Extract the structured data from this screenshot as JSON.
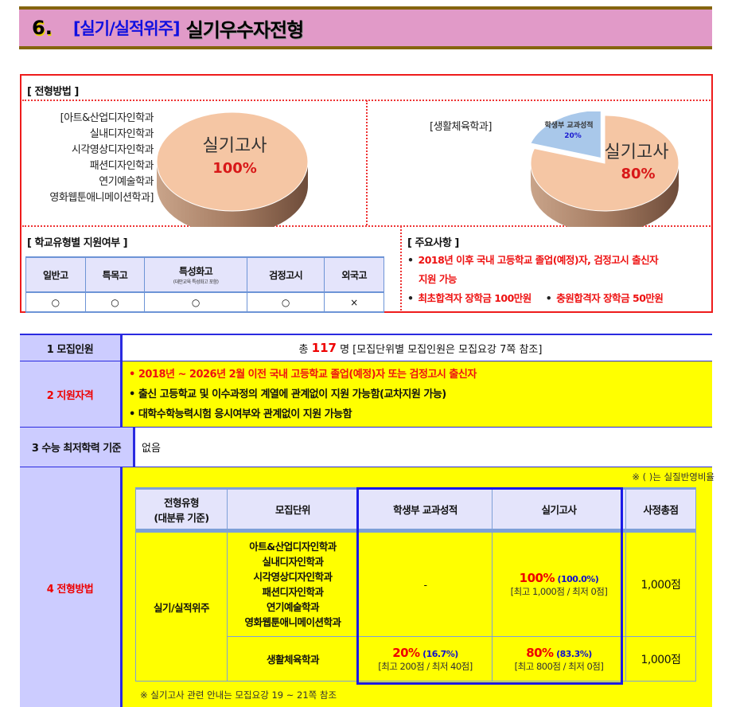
{
  "header": {
    "number": "6.",
    "category": "[실기/실적위주]",
    "title": "실기우수자전형"
  },
  "method_box": {
    "label": "[ 전형방법 ]",
    "left": {
      "departments": [
        "[아트&산업디자인학과",
        "실내디자인학과",
        "시각영상디자인학과",
        "패션디자인학과",
        "연기예술학과",
        "영화웹툰애니메이션학과]"
      ],
      "pie": {
        "slices": [
          {
            "label": "실기고사",
            "value_label": "100%",
            "value": 100,
            "color": "#f5c6a4"
          }
        ]
      }
    },
    "right": {
      "departments": [
        "[생활체육학과]"
      ],
      "pie": {
        "slices": [
          {
            "label": "실기고사",
            "value_label": "80%",
            "value": 80,
            "color": "#f5c6a4"
          },
          {
            "label": "학생부 교과성적",
            "value_label": "20%",
            "value": 20,
            "color": "#a9c8ea"
          }
        ]
      }
    }
  },
  "school_type": {
    "label": "[ 학교유형별 지원여부 ]",
    "headers": [
      {
        "label": "일반고",
        "note": ""
      },
      {
        "label": "특목고",
        "note": ""
      },
      {
        "label": "특성화고",
        "note": "(대안교육 특성화고 포함)"
      },
      {
        "label": "검정고시",
        "note": ""
      },
      {
        "label": "외국고",
        "note": ""
      }
    ],
    "values": [
      "○",
      "○",
      "○",
      "○",
      "×"
    ]
  },
  "notices": {
    "label": "[ 주요사항 ]",
    "bullet": "•",
    "items": [
      "2018년 이후 국내 고등학교 졸업(예정)자, 검정고시 출신자",
      "지원 가능",
      "최초합격자 장학금 100만원",
      "충원합격자 장학금 50만원"
    ]
  },
  "main": {
    "recruit": {
      "label": "1 모집인원",
      "prefix": "총",
      "count": "117",
      "suffix": "명 [모집단위별 모집인원은 모집요강 7쪽 참조]"
    },
    "qualification": {
      "label": "2 지원자격",
      "lines": [
        "• 2018년 ~ 2026년 2월 이전 국내 고등학교 졸업(예정)자 또는 검정고시 출신자",
        "• 출신 고등학교 및 이수과정의 계열에 관계없이 지원 가능함(교차지원 가능)",
        "• 대학수학능력시험 응시여부와 관계없이 지원 가능함"
      ]
    },
    "csat": {
      "label": "3 수능 최저학력 기준",
      "value": "없음"
    },
    "method": {
      "label": "4 전형방법",
      "ratio_note": "※ (      )는 실질반영비율",
      "headers": [
        "전형유형\n(대분류 기준)",
        "모집단위",
        "학생부 교과성적",
        "실기고사",
        "사정총점"
      ],
      "type": "실기/실적위주",
      "rows": [
        {
          "units": "아트&산업디자인학과\n실내디자인학과\n시각영상디자인학과\n패션디자인학과\n연기예술학과\n영화웹툰애니메이션학과",
          "school_record": {
            "pct": "-",
            "real": "",
            "range": ""
          },
          "practical": {
            "pct": "100%",
            "real": "(100.0%)",
            "range": "[최고 1,000점 / 최저 0점]"
          },
          "total": "1,000점"
        },
        {
          "units": "생활체육학과",
          "school_record": {
            "pct": "20%",
            "real": "(16.7%)",
            "range": "[최고 200점 / 최저 40점]"
          },
          "practical": {
            "pct": "80%",
            "real": "(83.3%)",
            "range": "[최고 800점 / 최저 0점]"
          },
          "total": "1,000점"
        }
      ],
      "footnote": "※ 실기고사 관련 안내는 모집요강 19 ~ 21쪽 참조"
    }
  },
  "colors": {
    "title_bg": "#e19ac8",
    "highlight": "#ffff00",
    "label_bg": "#ccccff",
    "accent_red": "#ee1111",
    "accent_blue": "#1010cc"
  }
}
